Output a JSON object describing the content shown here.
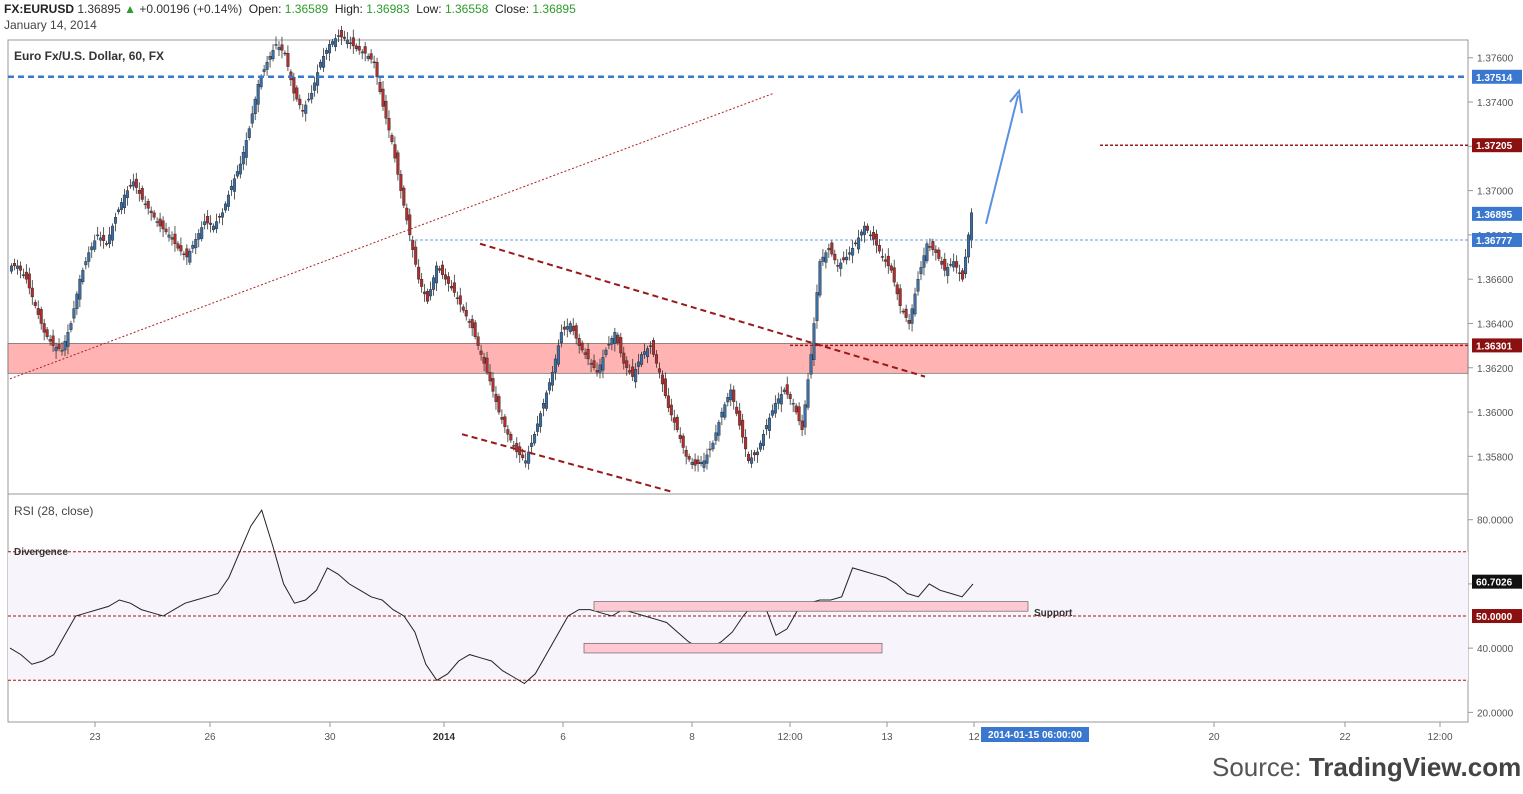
{
  "header": {
    "symbol": "FX:EURUSD",
    "last": "1.36895",
    "change_arrow": "▲",
    "change": "+0.00196 (+0.14%)",
    "open_label": "Open:",
    "open": "1.36589",
    "high_label": "High:",
    "high": "1.36983",
    "low_label": "Low:",
    "low": "1.36558",
    "close_label": "Close:",
    "close": "1.36895",
    "date": "January 14, 2014"
  },
  "colors": {
    "up": "#3a6ea5",
    "down": "#b03030",
    "wick": "#333333",
    "support_zone": "#ffb3b3",
    "rsi_band": "#f7f4fb",
    "blue_dash": "#3a78d0",
    "red_dash": "#a01818"
  },
  "chart_data": [
    {
      "type": "line",
      "title": "Euro Fx/U.S. Dollar, 60, FX",
      "ylim": [
        1.3563,
        1.3768
      ],
      "yticks": [
        "1.37600",
        "1.37400",
        "1.37200",
        "1.37000",
        "1.36800",
        "1.36600",
        "1.36400",
        "1.36200",
        "1.36000",
        "1.35800"
      ],
      "x_ticks": [
        "23",
        "26",
        "30",
        "2014",
        "6",
        "8",
        "12:00",
        "13",
        "12",
        "20",
        "22",
        "12:00"
      ],
      "price_labels": [
        {
          "text": "1.37514",
          "value": 1.37514,
          "color": "#3a78d0"
        },
        {
          "text": "1.37205",
          "value": 1.37205,
          "color": "#8b1010"
        },
        {
          "text": "1.36895",
          "value": 1.36895,
          "color": "#3a78d0"
        },
        {
          "text": "1.36777",
          "value": 1.36777,
          "color": "#3a78d0"
        },
        {
          "text": "1.36301",
          "value": 1.36301,
          "color": "#8b1010"
        }
      ],
      "series": [
        {
          "values": [
            1.3666,
            1.366,
            1.3648,
            1.3636,
            1.363,
            1.3628,
            1.364,
            1.366,
            1.3672,
            1.368,
            1.3676,
            1.3688,
            1.3698,
            1.3704,
            1.3696,
            1.369,
            1.3684,
            1.368,
            1.3674,
            1.367,
            1.3678,
            1.3686,
            1.3684,
            1.369,
            1.3702,
            1.3712,
            1.3728,
            1.3748,
            1.3758,
            1.3766,
            1.3762,
            1.3744,
            1.3736,
            1.3744,
            1.3758,
            1.3766,
            1.377,
            1.3768,
            1.3764,
            1.3762,
            1.3758,
            1.3738,
            1.3722,
            1.37,
            1.368,
            1.366,
            1.365,
            1.3666,
            1.366,
            1.3654,
            1.3646,
            1.3638,
            1.3626,
            1.3614,
            1.36,
            1.359,
            1.3582,
            1.3578,
            1.359,
            1.3604,
            1.3618,
            1.3636,
            1.364,
            1.363,
            1.3624,
            1.3618,
            1.3628,
            1.3636,
            1.3622,
            1.3616,
            1.3626,
            1.363,
            1.3618,
            1.3602,
            1.3592,
            1.358,
            1.3576,
            1.3578,
            1.3586,
            1.36,
            1.361,
            1.3594,
            1.3578,
            1.3582,
            1.3594,
            1.3604,
            1.361,
            1.3604,
            1.3592,
            1.3626,
            1.3668,
            1.3674,
            1.3666,
            1.367,
            1.3676,
            1.3684,
            1.3678,
            1.367,
            1.3664,
            1.3648,
            1.364,
            1.366,
            1.3676,
            1.3672,
            1.3664,
            1.3668,
            1.366,
            1.369
          ]
        }
      ]
    },
    {
      "type": "line",
      "title": "RSI (28, close)",
      "ylim": [
        17,
        88
      ],
      "yticks": [
        "80.0000",
        "60.0000",
        "40.0000",
        "20.0000"
      ],
      "levels": [
        70,
        50,
        30
      ],
      "price_labels": [
        {
          "text": "60.7026",
          "value": 60.7026,
          "color": "#111111"
        },
        {
          "text": "50.0000",
          "value": 50.0,
          "color": "#8b1010"
        }
      ],
      "annotations": [
        "Divergence",
        "Support"
      ],
      "series": [
        {
          "values": [
            40,
            38,
            35,
            36,
            38,
            44,
            50,
            51,
            52,
            53,
            55,
            54,
            52,
            51,
            50,
            52,
            54,
            55,
            56,
            57,
            62,
            70,
            78,
            83,
            72,
            60,
            54,
            55,
            58,
            65,
            63,
            60,
            58,
            56,
            55,
            52,
            50,
            45,
            35,
            30,
            32,
            36,
            38,
            37,
            36,
            33,
            31,
            29,
            32,
            38,
            44,
            50,
            52,
            52,
            51,
            50,
            52,
            51,
            50,
            49,
            48,
            45,
            42,
            40,
            40,
            42,
            45,
            50,
            54,
            53,
            44,
            46,
            52,
            54,
            55,
            55,
            56,
            65,
            64,
            63,
            62,
            60,
            57,
            56,
            60,
            58,
            57,
            56,
            60
          ]
        }
      ]
    }
  ],
  "axis_label_badge": "2014-01-15 06:00:00",
  "source": {
    "prefix": "Source: ",
    "brand": "TradingView.com"
  }
}
